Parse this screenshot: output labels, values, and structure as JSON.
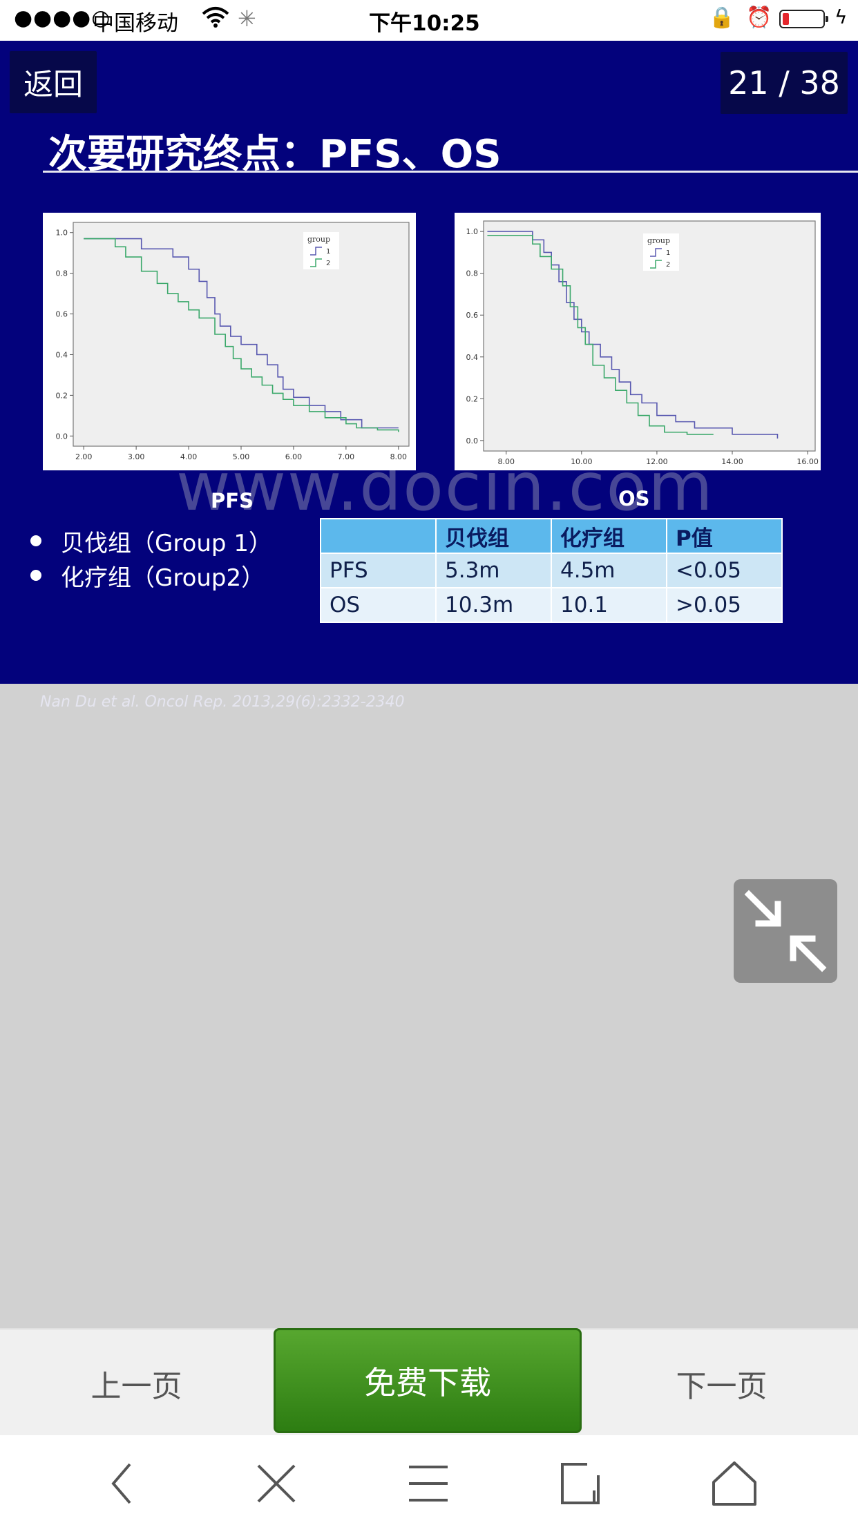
{
  "status_bar": {
    "signal": "●●●●○",
    "carrier": "中国移动",
    "time": "下午10:25",
    "icons": [
      "wifi-icon",
      "activity-spinner-icon",
      "orientation-lock-icon",
      "alarm-icon",
      "battery-icon",
      "charging-icon"
    ]
  },
  "slide": {
    "back_label": "返回",
    "page_counter": "21 / 38",
    "title": "次要研究终点：PFS、OS",
    "pfs_caption": "PFS",
    "os_caption": "OS",
    "legend_items": [
      {
        "label": "贝伐组（Group 1）"
      },
      {
        "label": "化疗组（Group2）"
      }
    ],
    "table": {
      "headers": [
        "",
        "贝伐组",
        "化疗组",
        "P值"
      ],
      "rows": [
        [
          "PFS",
          "5.3m",
          "4.5m",
          "<0.05"
        ],
        [
          "OS",
          "10.3m",
          "10.1",
          ">0.05"
        ]
      ]
    },
    "citation": "Nan Du et al. Oncol Rep. 2013,29(6):2332-2340",
    "watermark": "www.docin.com"
  },
  "chart_data": [
    {
      "type": "line",
      "chart": "PFS",
      "legend_title": "group",
      "series": [
        {
          "name": "1",
          "color": "#5858b0",
          "x": [
            2.0,
            2.8,
            3.1,
            3.7,
            4.0,
            4.2,
            4.35,
            4.5,
            4.6,
            4.8,
            5.0,
            5.3,
            5.5,
            5.7,
            5.8,
            6.0,
            6.3,
            6.6,
            6.9,
            7.3,
            8.0
          ],
          "y": [
            0.97,
            0.97,
            0.92,
            0.88,
            0.82,
            0.76,
            0.68,
            0.6,
            0.54,
            0.49,
            0.45,
            0.4,
            0.35,
            0.29,
            0.23,
            0.19,
            0.15,
            0.12,
            0.08,
            0.04,
            0.04
          ]
        },
        {
          "name": "2",
          "color": "#3aa86a",
          "x": [
            2.0,
            2.6,
            2.8,
            3.1,
            3.4,
            3.6,
            3.8,
            4.0,
            4.2,
            4.5,
            4.7,
            4.85,
            5.0,
            5.2,
            5.4,
            5.6,
            5.8,
            6.0,
            6.3,
            6.6,
            7.0,
            7.2,
            7.6,
            8.0
          ],
          "y": [
            0.97,
            0.93,
            0.88,
            0.81,
            0.75,
            0.7,
            0.66,
            0.62,
            0.58,
            0.5,
            0.44,
            0.38,
            0.33,
            0.29,
            0.25,
            0.21,
            0.18,
            0.15,
            0.12,
            0.09,
            0.06,
            0.04,
            0.03,
            0.02
          ]
        }
      ],
      "xlim": [
        1.8,
        8.2
      ],
      "ylim": [
        -0.05,
        1.05
      ],
      "xticks": [
        "2.00",
        "3.00",
        "4.00",
        "5.00",
        "6.00",
        "7.00",
        "8.00"
      ],
      "yticks": [
        "0.0",
        "0.2",
        "0.4",
        "0.6",
        "0.8",
        "1.0"
      ]
    },
    {
      "type": "line",
      "chart": "OS",
      "legend_title": "group",
      "series": [
        {
          "name": "1",
          "color": "#5858b0",
          "x": [
            7.5,
            8.7,
            9.0,
            9.2,
            9.4,
            9.6,
            9.8,
            10.0,
            10.2,
            10.5,
            10.8,
            11.0,
            11.3,
            11.6,
            12.0,
            12.5,
            13.0,
            14.0,
            15.2
          ],
          "y": [
            1.0,
            0.96,
            0.9,
            0.84,
            0.76,
            0.66,
            0.58,
            0.52,
            0.46,
            0.4,
            0.34,
            0.28,
            0.22,
            0.18,
            0.12,
            0.09,
            0.06,
            0.03,
            0.01
          ]
        },
        {
          "name": "2",
          "color": "#3aa86a",
          "x": [
            7.5,
            8.7,
            8.9,
            9.2,
            9.5,
            9.7,
            9.9,
            10.1,
            10.3,
            10.6,
            10.9,
            11.2,
            11.5,
            11.8,
            12.2,
            12.8,
            13.5
          ],
          "y": [
            0.98,
            0.94,
            0.88,
            0.82,
            0.74,
            0.64,
            0.54,
            0.46,
            0.36,
            0.3,
            0.24,
            0.18,
            0.12,
            0.07,
            0.04,
            0.03,
            0.03
          ]
        }
      ],
      "xlim": [
        7.4,
        16.2
      ],
      "ylim": [
        -0.05,
        1.05
      ],
      "xticks": [
        "8.00",
        "10.00",
        "12.00",
        "14.00",
        "16.00"
      ],
      "yticks": [
        "0.0",
        "0.2",
        "0.4",
        "0.6",
        "0.8",
        "1.0"
      ]
    }
  ],
  "bottom_bar": {
    "prev_label": "上一页",
    "download_label": "免费下载",
    "next_label": "下一页"
  },
  "browser_toolbar": {
    "icons": [
      "back-icon",
      "close-icon",
      "menu-icon",
      "tabs-icon",
      "home-icon"
    ]
  },
  "exit_fullscreen_icon": "exit-fullscreen-icon"
}
